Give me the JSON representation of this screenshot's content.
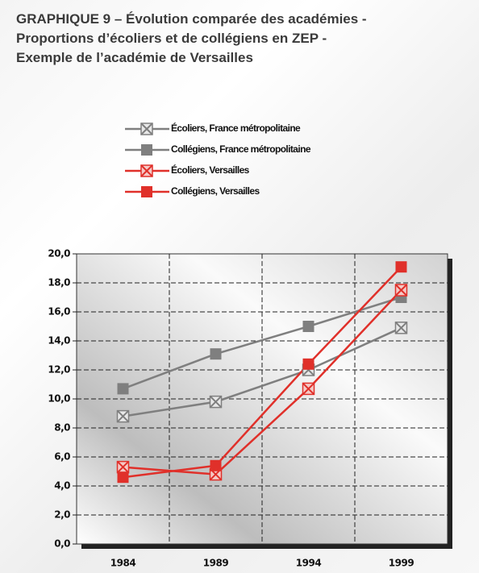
{
  "chart_data": {
    "type": "line",
    "title": [
      "GRAPHIQUE 9 – Évolution comparée des académies -",
      "Proportions d’écoliers et de collégiens en ZEP -",
      "Exemple de l’académie de Versailles"
    ],
    "categories": [
      "1984",
      "1989",
      "1994",
      "1999"
    ],
    "series": [
      {
        "name": "Écoliers, France métropolitaine",
        "color": "#7f7f7f",
        "marker": "x",
        "values": [
          8.8,
          9.8,
          12.0,
          14.9
        ]
      },
      {
        "name": "Collégiens, France métropolitaine",
        "color": "#7f7f7f",
        "marker": "square",
        "values": [
          10.7,
          13.1,
          15.0,
          17.0
        ]
      },
      {
        "name": "Écoliers, Versailles",
        "color": "#e0302a",
        "marker": "x",
        "values": [
          5.3,
          4.8,
          10.7,
          17.5
        ]
      },
      {
        "name": "Collégiens, Versailles",
        "color": "#e0302a",
        "marker": "square",
        "values": [
          4.6,
          5.4,
          12.4,
          19.1
        ]
      }
    ],
    "ylim": [
      0,
      20
    ],
    "yticks": [
      {
        "value": 0,
        "label": "0,0"
      },
      {
        "value": 2,
        "label": "2,0"
      },
      {
        "value": 4,
        "label": "4,0"
      },
      {
        "value": 6,
        "label": "6,0"
      },
      {
        "value": 8,
        "label": "8,0"
      },
      {
        "value": 10,
        "label": "10,0"
      },
      {
        "value": 12,
        "label": "12,0"
      },
      {
        "value": 14,
        "label": "14,0"
      },
      {
        "value": 16,
        "label": "16,0"
      },
      {
        "value": 18,
        "label": "18,0"
      },
      {
        "value": 20,
        "label": "20,0"
      }
    ],
    "grid": true
  }
}
